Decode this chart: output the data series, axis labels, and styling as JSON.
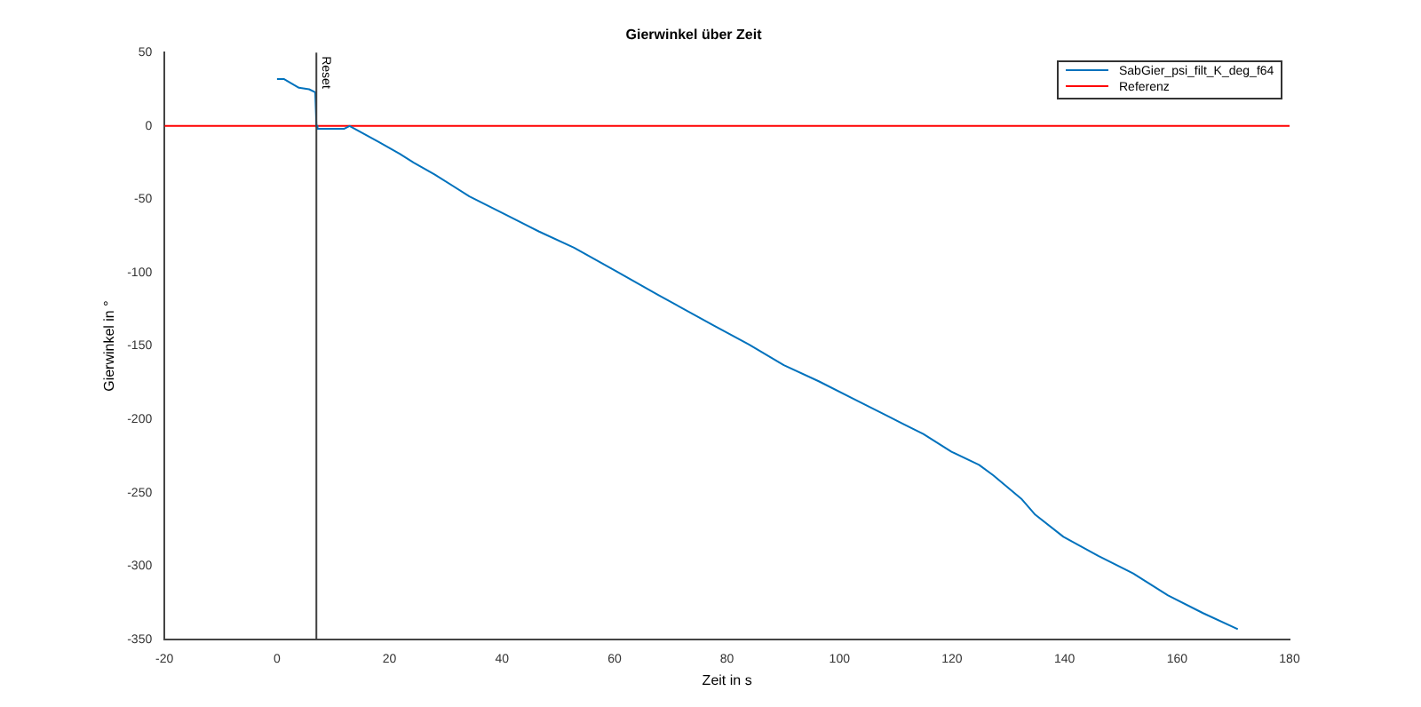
{
  "chart_data": {
    "type": "line",
    "title": "Gierwinkel über Zeit",
    "xlabel": "Zeit in s",
    "ylabel": "Gierwinkel in °",
    "xlim": [
      -20,
      180
    ],
    "xticks": [
      -20,
      0,
      20,
      40,
      60,
      80,
      100,
      120,
      140,
      160,
      180
    ],
    "ylim": [
      -350,
      50
    ],
    "yticks": [
      -350,
      -300,
      -250,
      -200,
      -150,
      -100,
      -50,
      0,
      50
    ],
    "legend": "top right",
    "series": [
      {
        "name": "SabGier_psi_filt_K_deg_f64",
        "color": "#0072bd",
        "x": [
          0,
          1.2,
          3.9,
          5.7,
          6.8,
          7,
          7.2,
          11.9,
          12.9,
          18.1,
          21.8,
          24.3,
          28,
          34.2,
          40.4,
          46.6,
          52.8,
          60.3,
          67.7,
          77.6,
          83.9,
          90.1,
          96.3,
          102.5,
          108.7,
          114.9,
          119.9,
          124.8,
          127.3,
          132.3,
          134.8,
          139.8,
          146,
          152.2,
          158.4,
          164.6,
          170.8
        ],
        "values": [
          32,
          32,
          26,
          25,
          23,
          0,
          -2,
          -2,
          0,
          -11,
          -19,
          -25,
          -33,
          -48,
          -60,
          -72,
          -83,
          -99,
          -115,
          -136,
          -149,
          -163,
          -174,
          -186,
          -198,
          -210,
          -222,
          -231,
          -238,
          -254,
          -265,
          -280,
          -293,
          -305,
          -320,
          -332,
          -343
        ]
      },
      {
        "name": "Referenz",
        "color": "#ff0000",
        "x": [
          -20,
          180
        ],
        "values": [
          0,
          0
        ]
      }
    ],
    "ref_lines": [
      {
        "axis": "x",
        "value": 7,
        "label": "Reset",
        "color": "#404040"
      }
    ]
  }
}
